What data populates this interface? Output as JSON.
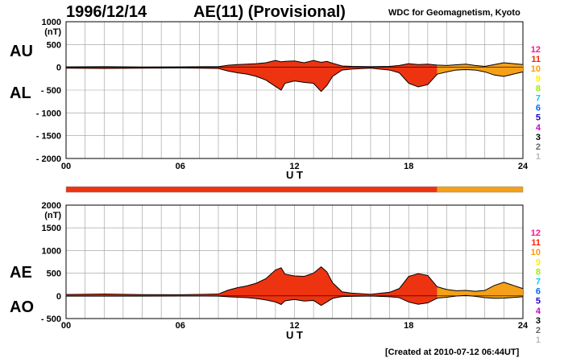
{
  "header": {
    "date": "1996/12/14",
    "title": "AE(11) (Provisional)",
    "source": "WDC for Geomagnetism, Kyoto"
  },
  "footer": {
    "created": "[Created at 2010-07-12 06:44UT]"
  },
  "colors": {
    "fill_red": "#ee3311",
    "fill_orange": "#f4a018",
    "outline": "#000000",
    "grid": "#999999"
  },
  "count_legend": [
    {
      "label": "12",
      "color": "#ff1493"
    },
    {
      "label": "11",
      "color": "#ff2200"
    },
    {
      "label": "10",
      "color": "#ff9900"
    },
    {
      "label": "9",
      "color": "#ffee00"
    },
    {
      "label": "8",
      "color": "#99ee00"
    },
    {
      "label": "7",
      "color": "#00ccff"
    },
    {
      "label": "6",
      "color": "#0066ff"
    },
    {
      "label": "5",
      "color": "#2200cc"
    },
    {
      "label": "4",
      "color": "#cc00cc"
    },
    {
      "label": "3",
      "color": "#000000"
    },
    {
      "label": "2",
      "color": "#666666"
    },
    {
      "label": "1",
      "color": "#bbbbbb"
    }
  ],
  "station_bar": {
    "segments": [
      {
        "from_hour": 0,
        "to_hour": 19.5,
        "count": 11
      },
      {
        "from_hour": 19.5,
        "to_hour": 24,
        "count": 10
      }
    ]
  },
  "chart_data": [
    {
      "type": "area",
      "panel": "AU/AL",
      "upper_label": "AU",
      "lower_label": "AL",
      "ylabel": "(nT)",
      "xlabel": "U T",
      "x_ticks": [
        "00",
        "06",
        "12",
        "18",
        "24"
      ],
      "y_ticks": [
        "1000",
        "500",
        "0",
        "- 500",
        "- 1000",
        "- 1500",
        "- 2000"
      ],
      "y_tick_values": [
        1000,
        500,
        0,
        -500,
        -1000,
        -1500,
        -2000
      ],
      "xlim": [
        0,
        24
      ],
      "ylim": [
        -2000,
        1000
      ],
      "grid": true,
      "x": [
        0,
        2,
        4,
        6,
        8,
        8.5,
        9,
        9.5,
        10,
        10.5,
        11,
        11.3,
        11.5,
        12,
        12.5,
        13,
        13.4,
        13.7,
        14,
        14.5,
        15,
        16,
        17,
        17.5,
        18,
        18.5,
        19,
        19.5,
        20,
        20.5,
        21,
        21.5,
        22,
        22.5,
        23,
        23.5,
        24
      ],
      "au": [
        10,
        15,
        8,
        10,
        15,
        45,
        60,
        70,
        80,
        100,
        150,
        120,
        130,
        140,
        100,
        150,
        110,
        130,
        90,
        30,
        20,
        15,
        20,
        40,
        80,
        60,
        70,
        50,
        40,
        55,
        70,
        40,
        20,
        60,
        100,
        80,
        60
      ],
      "al": [
        -20,
        -25,
        -20,
        -15,
        -25,
        -80,
        -120,
        -150,
        -200,
        -280,
        -420,
        -500,
        -350,
        -300,
        -330,
        -350,
        -530,
        -400,
        -200,
        -60,
        -40,
        -20,
        -60,
        -120,
        -350,
        -430,
        -380,
        -150,
        -100,
        -60,
        -50,
        -60,
        -100,
        -170,
        -200,
        -150,
        -100
      ]
    },
    {
      "type": "area",
      "panel": "AE/AO",
      "upper_label": "AE",
      "lower_label": "AO",
      "ylabel": "(nT)",
      "xlabel": "U T",
      "x_ticks": [
        "00",
        "06",
        "12",
        "18",
        "24"
      ],
      "y_ticks": [
        "2000",
        "1500",
        "1000",
        "500",
        "0",
        "- 500"
      ],
      "y_tick_values": [
        2000,
        1500,
        1000,
        500,
        0,
        -500
      ],
      "xlim": [
        0,
        24
      ],
      "ylim": [
        -500,
        2000
      ],
      "grid": true,
      "x": [
        0,
        2,
        4,
        6,
        8,
        8.5,
        9,
        9.5,
        10,
        10.5,
        11,
        11.3,
        11.5,
        12,
        12.5,
        13,
        13.4,
        13.7,
        14,
        14.5,
        15,
        16,
        17,
        17.5,
        18,
        18.5,
        19,
        19.5,
        20,
        20.5,
        21,
        21.5,
        22,
        22.5,
        23,
        23.5,
        24
      ],
      "ae": [
        30,
        40,
        28,
        25,
        40,
        125,
        180,
        220,
        280,
        380,
        570,
        620,
        480,
        440,
        430,
        500,
        640,
        530,
        290,
        90,
        60,
        35,
        80,
        160,
        430,
        490,
        450,
        200,
        140,
        115,
        120,
        100,
        120,
        230,
        300,
        230,
        160
      ],
      "ao": [
        -5,
        -5,
        -6,
        -3,
        -5,
        -18,
        -30,
        -40,
        -60,
        -90,
        -135,
        -190,
        -110,
        -80,
        -115,
        -100,
        -210,
        -135,
        -55,
        -15,
        -10,
        -3,
        -20,
        -40,
        -135,
        -185,
        -155,
        -50,
        -30,
        -3,
        10,
        -10,
        -40,
        -55,
        -50,
        -35,
        -20
      ]
    }
  ]
}
